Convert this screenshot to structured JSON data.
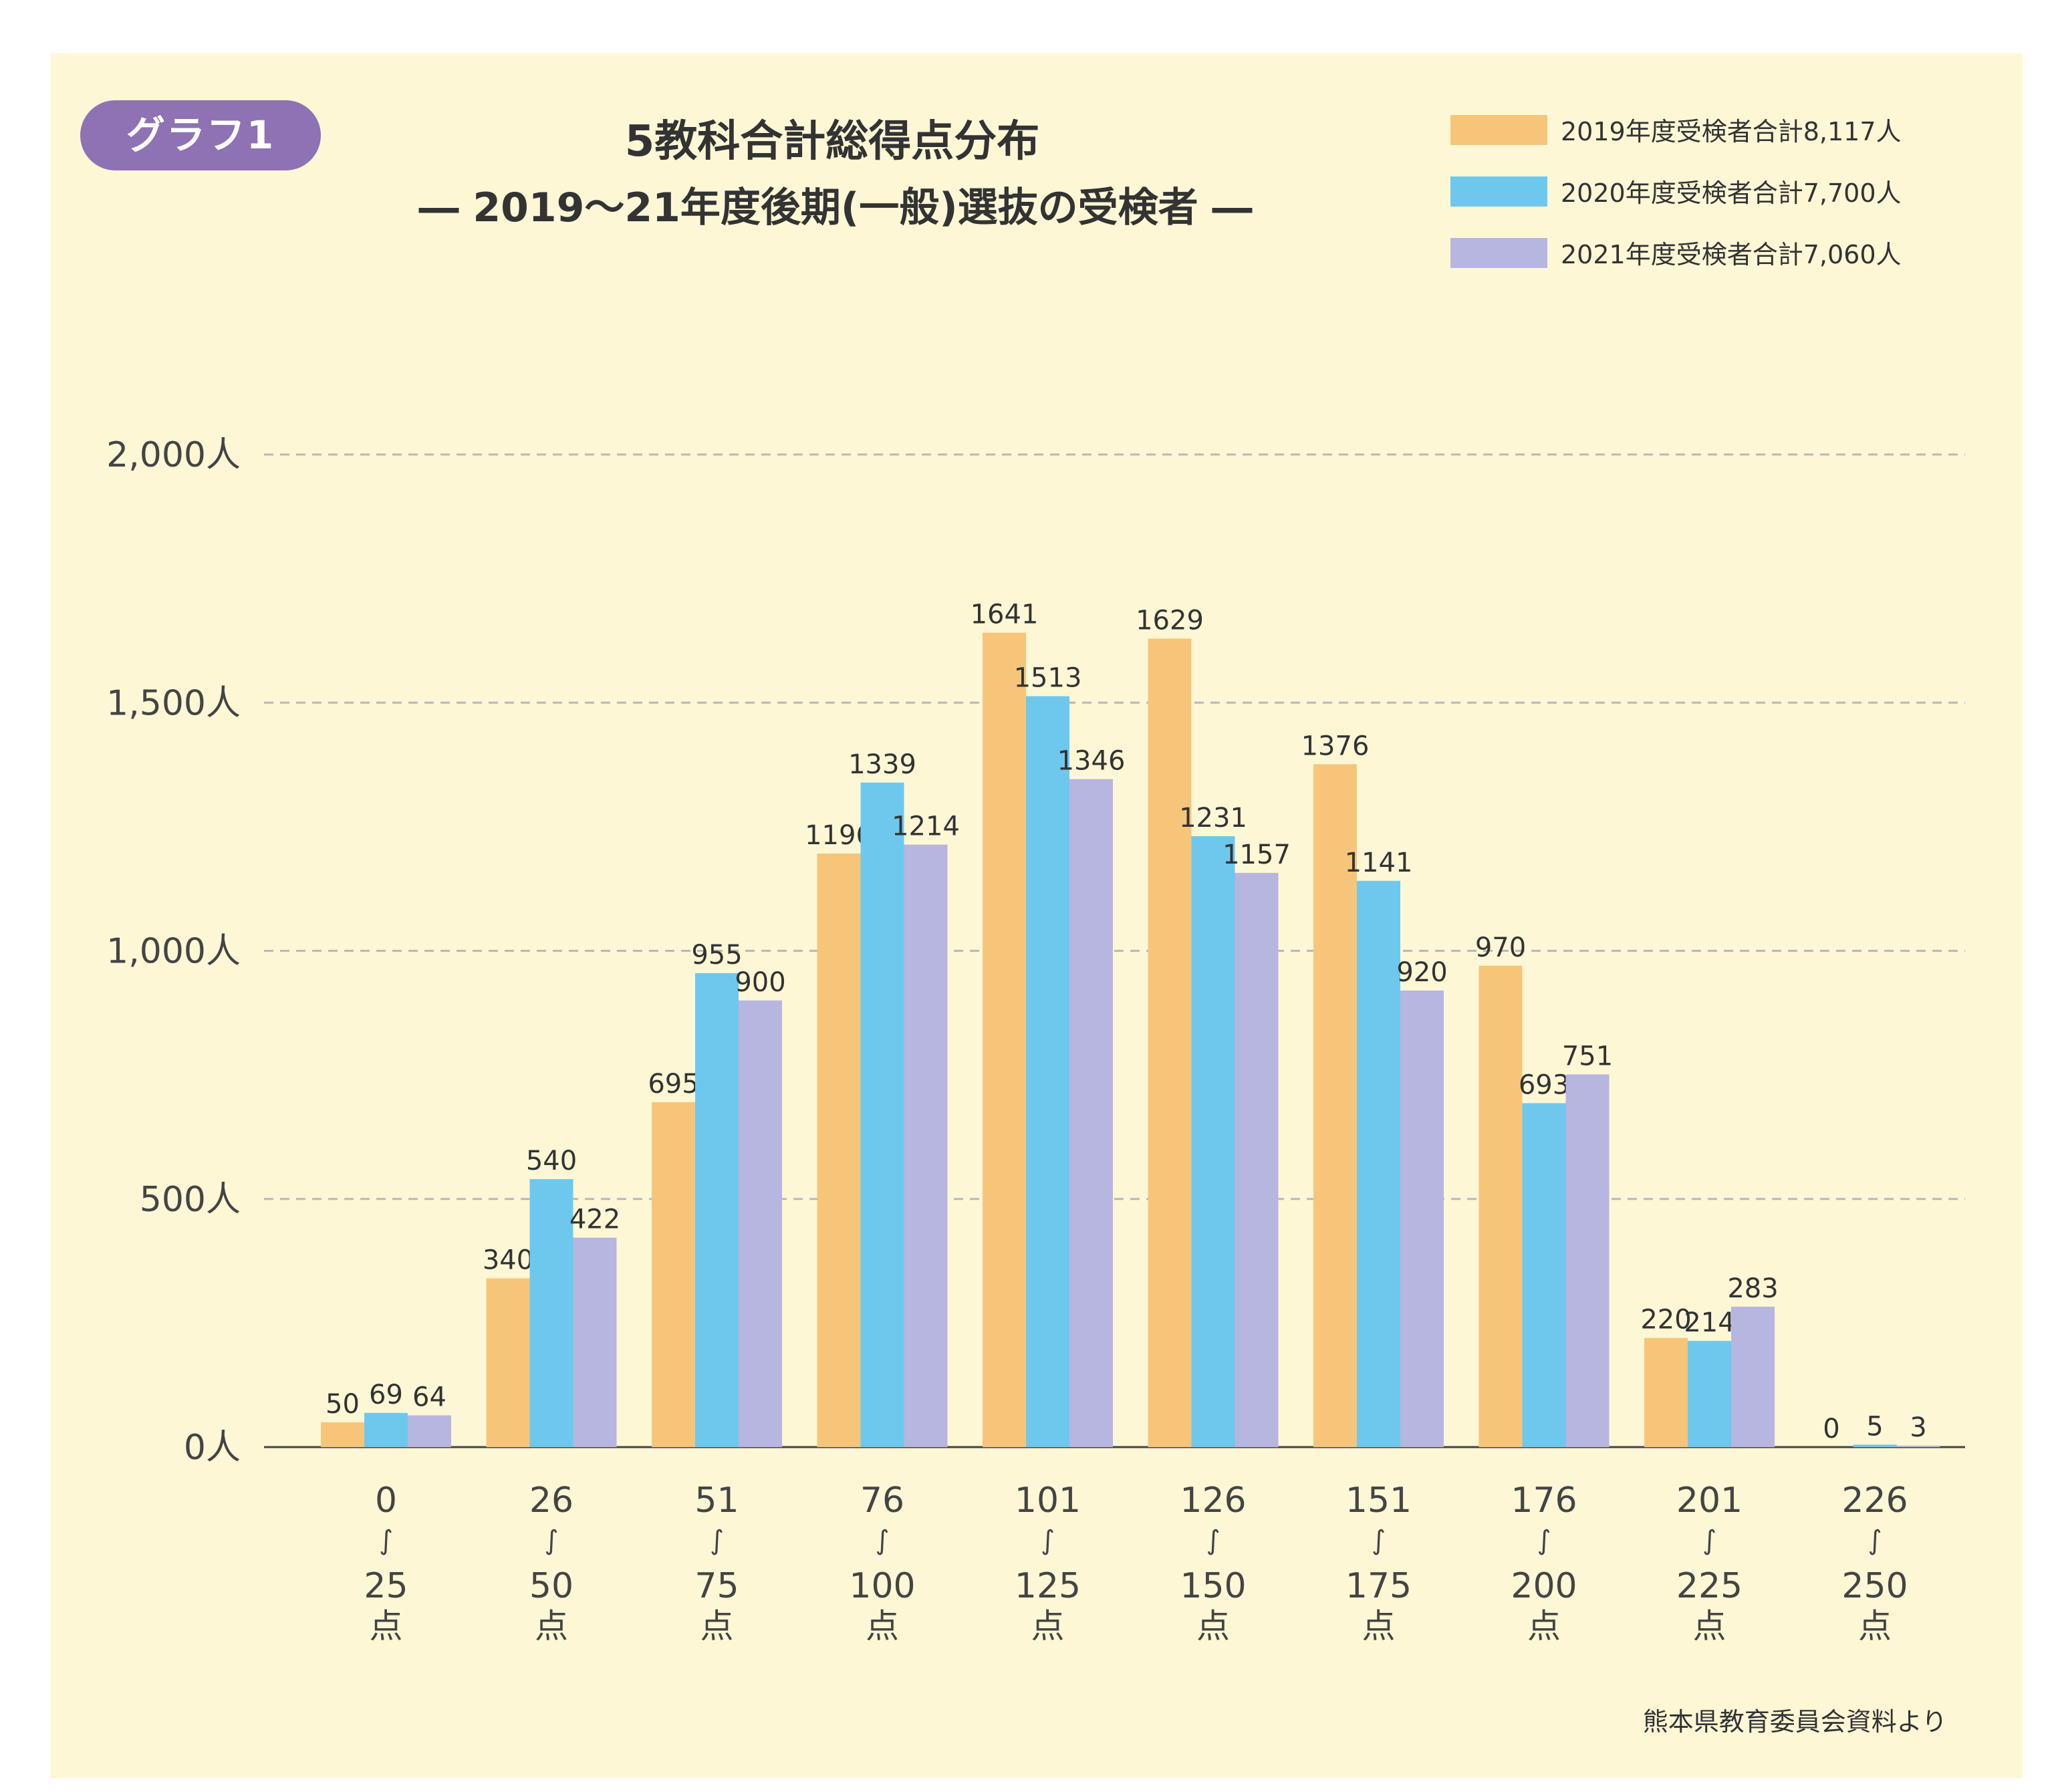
{
  "badge": {
    "label": "グラフ1",
    "color": "#8e72b4"
  },
  "source": "熊本県教育委員会資料より",
  "chart_data": {
    "type": "bar",
    "title": "5教科合計総得点分布",
    "subtitle": "― 2019～21年度後期(一般)選抜の受検者 ―",
    "categories": [
      {
        "from": "0",
        "to": "25",
        "unit": "点"
      },
      {
        "from": "26",
        "to": "50",
        "unit": "点"
      },
      {
        "from": "51",
        "to": "75",
        "unit": "点"
      },
      {
        "from": "76",
        "to": "100",
        "unit": "点"
      },
      {
        "from": "101",
        "to": "125",
        "unit": "点"
      },
      {
        "from": "126",
        "to": "150",
        "unit": "点"
      },
      {
        "from": "151",
        "to": "175",
        "unit": "点"
      },
      {
        "from": "176",
        "to": "200",
        "unit": "点"
      },
      {
        "from": "201",
        "to": "225",
        "unit": "点"
      },
      {
        "from": "226",
        "to": "250",
        "unit": "点"
      }
    ],
    "range_mark": "∫",
    "series": [
      {
        "name": "2019年度受検者合計8,117人",
        "color": "#f7c57a",
        "values": [
          50,
          340,
          695,
          1196,
          1641,
          1629,
          1376,
          970,
          220,
          0
        ]
      },
      {
        "name": "2020年度受検者合計7,700人",
        "color": "#6ec8ee",
        "values": [
          69,
          540,
          955,
          1339,
          1513,
          1231,
          1141,
          693,
          214,
          5
        ]
      },
      {
        "name": "2021年度受検者合計7,060人",
        "color": "#b6b6e0",
        "values": [
          64,
          422,
          900,
          1214,
          1346,
          1157,
          920,
          751,
          283,
          3
        ]
      }
    ],
    "yticks": [
      {
        "value": 0,
        "label": "0人"
      },
      {
        "value": 500,
        "label": "500人"
      },
      {
        "value": 1000,
        "label": "1,000人"
      },
      {
        "value": 1500,
        "label": "1,500人"
      },
      {
        "value": 2000,
        "label": "2,000人"
      }
    ],
    "ylim": [
      0,
      2000
    ],
    "grid": true,
    "legend_position": "top-right"
  }
}
